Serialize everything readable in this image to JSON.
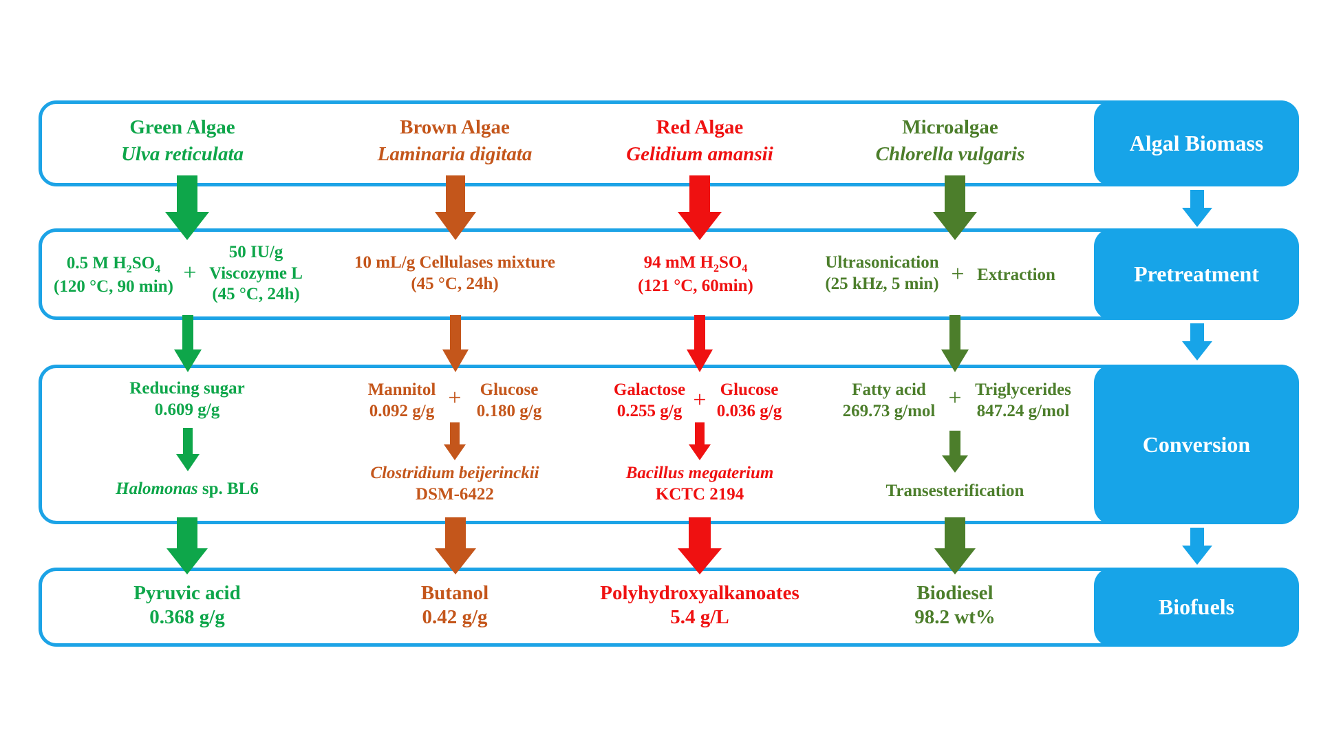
{
  "stages": {
    "algal_biomass": "Algal Biomass",
    "pretreatment": "Pretreatment",
    "conversion": "Conversion",
    "biofuels": "Biofuels"
  },
  "colors": {
    "band_border": "#1ca3e6",
    "label_fill": "#17a4e8",
    "green": "#0ea64a",
    "brown": "#c4561b",
    "red": "#ef1111",
    "olive": "#4c7e2b"
  },
  "columns": [
    {
      "algae_type": "Green Algae",
      "species": "Ulva reticulata",
      "pretreatment": {
        "a_line1_pre": "0.5 M H",
        "a_sub1": "2",
        "a_mid": "SO",
        "a_sub2": "4",
        "a_line2": "(120 °C, 90 min)",
        "b_line1": "50 IU/g",
        "b_line2": "Viscozyme L",
        "b_line3": "(45 °C, 24h)"
      },
      "conversion": {
        "product_name": "Reducing sugar",
        "product_value": "0.609 g/g",
        "organism_italic": "Halomonas",
        "organism_rest": " sp. BL6"
      },
      "biofuel": {
        "name": "Pyruvic acid",
        "value": "0.368 g/g"
      }
    },
    {
      "algae_type": "Brown Algae",
      "species": "Laminaria digitata",
      "pretreatment": {
        "line1": "10 mL/g Cellulases mixture",
        "line2": "(45 °C, 24h)"
      },
      "conversion": {
        "a_name": "Mannitol",
        "a_value": "0.092 g/g",
        "b_name": "Glucose",
        "b_value": "0.180 g/g",
        "organism": "Clostridium beijerinckii",
        "strain": "DSM-6422"
      },
      "biofuel": {
        "name": "Butanol",
        "value": "0.42 g/g"
      }
    },
    {
      "algae_type": "Red Algae",
      "species": "Gelidium amansii",
      "pretreatment": {
        "line1_pre": "94 mM H",
        "sub1": "2",
        "mid": "SO",
        "sub2": "4",
        "line2": "(121 °C, 60min)"
      },
      "conversion": {
        "a_name": "Galactose",
        "a_value": "0.255 g/g",
        "b_name": "Glucose",
        "b_value": "0.036 g/g",
        "organism": "Bacillus megaterium",
        "strain": "KCTC 2194"
      },
      "biofuel": {
        "name": "Polyhydroxyalkanoates",
        "value": "5.4 g/L"
      }
    },
    {
      "algae_type": "Microalgae",
      "species": "Chlorella vulgaris",
      "pretreatment": {
        "a_line1": "Ultrasonication",
        "a_line2": "(25 kHz, 5 min)",
        "b": "Extraction"
      },
      "conversion": {
        "a_name": "Fatty acid",
        "a_value": "269.73 g/mol",
        "b_name": "Triglycerides",
        "b_value": "847.24 g/mol",
        "process": "Transesterification"
      },
      "biofuel": {
        "name": "Biodiesel",
        "value": "98.2 wt%"
      }
    }
  ],
  "plus_sign": "+"
}
